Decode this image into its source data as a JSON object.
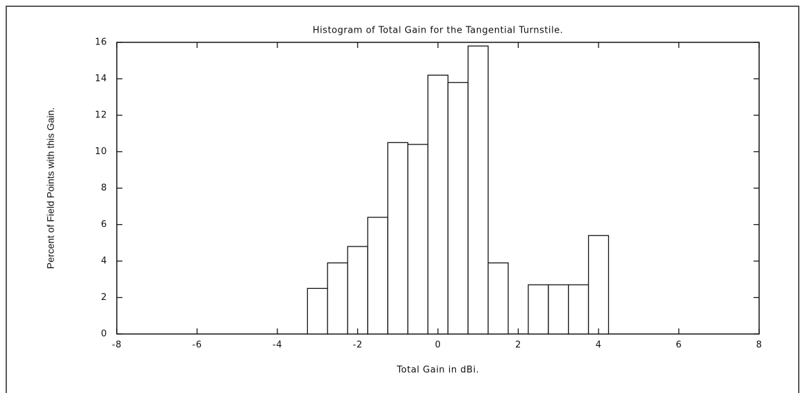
{
  "chart_data": {
    "type": "histogram",
    "title": "Histogram of Total Gain for the Tangential Turnstile.",
    "xlabel": "Total Gain in dBi.",
    "ylabel": "Percent of Field Points with this Gain.",
    "bins": [
      -3.25,
      -2.75,
      -2.25,
      -1.75,
      -1.25,
      -0.75,
      -0.25,
      0.25,
      0.75,
      1.25,
      1.75,
      2.25,
      2.75,
      3.25,
      3.75,
      4.25
    ],
    "counts": [
      2.5,
      3.9,
      4.8,
      6.4,
      10.5,
      10.4,
      14.2,
      13.8,
      15.8,
      3.9,
      0,
      2.7,
      2.7,
      2.7,
      5.4
    ],
    "color": "#ffffff",
    "xlim": [
      -8,
      8
    ],
    "xticks": [
      -8,
      -6,
      -4,
      -2,
      0,
      2,
      4,
      6,
      8
    ],
    "ylim": [
      0,
      16
    ],
    "yticks": [
      0,
      2,
      4,
      6,
      8,
      10,
      12,
      14,
      16
    ],
    "grid": false
  }
}
